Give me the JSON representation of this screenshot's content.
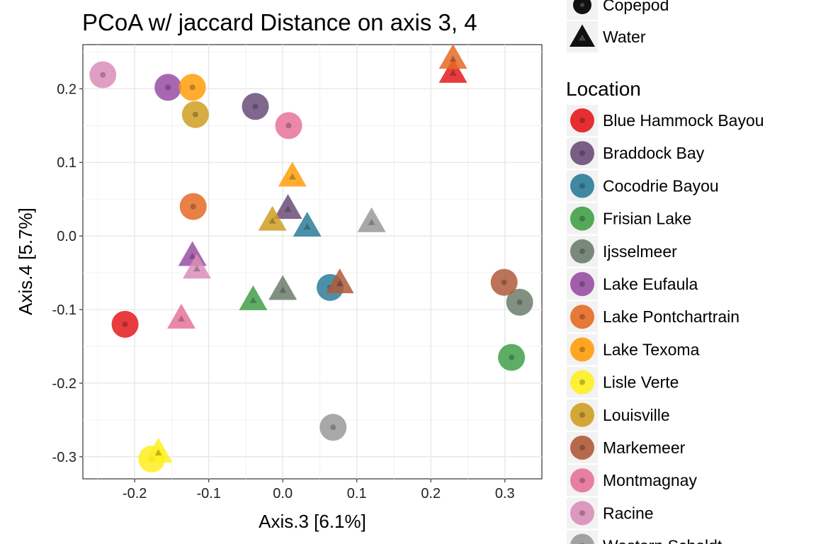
{
  "chart_data": {
    "type": "scatter",
    "title": "PCoA w/ jaccard Distance on axis 3, 4",
    "xlabel": "Axis.3   [6.1%]",
    "ylabel": "Axis.4   [5.7%]",
    "xlim": [
      -0.27,
      0.35
    ],
    "ylim": [
      -0.33,
      0.26
    ],
    "xticks": [
      {
        "value": -0.2,
        "label": "-0.2"
      },
      {
        "value": -0.1,
        "label": "-0.1"
      },
      {
        "value": 0.0,
        "label": "0.0"
      },
      {
        "value": 0.1,
        "label": "0.1"
      },
      {
        "value": 0.2,
        "label": "0.2"
      },
      {
        "value": 0.3,
        "label": "0.3"
      }
    ],
    "yticks": [
      {
        "value": 0.2,
        "label": "0.2"
      },
      {
        "value": 0.1,
        "label": "0.1"
      },
      {
        "value": 0.0,
        "label": "0.0"
      },
      {
        "value": -0.1,
        "label": "-0.1"
      },
      {
        "value": -0.2,
        "label": "-0.2"
      },
      {
        "value": -0.3,
        "label": "-0.3"
      }
    ],
    "grid": true,
    "shape_legend": {
      "entries": [
        {
          "label": "Copepod",
          "shape": "circle"
        },
        {
          "label": "Water",
          "shape": "triangle"
        }
      ]
    },
    "color_legend": {
      "title": "Location",
      "entries": [
        {
          "label": "Blue Hammock Bayou",
          "color": "#e41a1c"
        },
        {
          "label": "Braddock Bay",
          "color": "#6a4c7a"
        },
        {
          "label": "Cocodrie Bayou",
          "color": "#2b7c98"
        },
        {
          "label": "Frisian Lake",
          "color": "#41a049"
        },
        {
          "label": "Ijsselmeer",
          "color": "#6b7d6b"
        },
        {
          "label": "Lake Eufaula",
          "color": "#984ea3"
        },
        {
          "label": "Lake Pontchartrain",
          "color": "#e56a24"
        },
        {
          "label": "Lake Texoma",
          "color": "#ff9d0a"
        },
        {
          "label": "Lisle Verte",
          "color": "#ffee22"
        },
        {
          "label": "Louisville",
          "color": "#cf9f22"
        },
        {
          "label": "Markemeer",
          "color": "#b05a3a"
        },
        {
          "label": "Montmagnay",
          "color": "#e7729a"
        },
        {
          "label": "Racine",
          "color": "#d98eb8"
        },
        {
          "label": "Western Scheldt",
          "color": "#999999"
        }
      ]
    },
    "points": [
      {
        "x": 0.23,
        "y": 0.221,
        "shape": "triangle",
        "location": "Blue Hammock Bayou"
      },
      {
        "x": -0.213,
        "y": -0.12,
        "shape": "circle",
        "location": "Blue Hammock Bayou"
      },
      {
        "x": -0.037,
        "y": 0.176,
        "shape": "circle",
        "location": "Braddock Bay"
      },
      {
        "x": 0.007,
        "y": 0.036,
        "shape": "triangle",
        "location": "Braddock Bay"
      },
      {
        "x": 0.033,
        "y": 0.012,
        "shape": "triangle",
        "location": "Cocodrie Bayou"
      },
      {
        "x": 0.064,
        "y": -0.07,
        "shape": "circle",
        "location": "Cocodrie Bayou"
      },
      {
        "x": 0.309,
        "y": -0.165,
        "shape": "circle",
        "location": "Frisian Lake"
      },
      {
        "x": -0.04,
        "y": -0.088,
        "shape": "triangle",
        "location": "Frisian Lake"
      },
      {
        "x": 0.32,
        "y": -0.09,
        "shape": "circle",
        "location": "Ijsselmeer"
      },
      {
        "x": 0.0,
        "y": -0.074,
        "shape": "triangle",
        "location": "Ijsselmeer"
      },
      {
        "x": -0.155,
        "y": 0.202,
        "shape": "circle",
        "location": "Lake Eufaula"
      },
      {
        "x": -0.122,
        "y": -0.028,
        "shape": "triangle",
        "location": "Lake Eufaula"
      },
      {
        "x": 0.23,
        "y": 0.24,
        "shape": "triangle",
        "location": "Lake Pontchartrain"
      },
      {
        "x": -0.121,
        "y": 0.04,
        "shape": "circle",
        "location": "Lake Pontchartrain"
      },
      {
        "x": -0.122,
        "y": 0.202,
        "shape": "circle",
        "location": "Lake Texoma"
      },
      {
        "x": 0.013,
        "y": 0.08,
        "shape": "triangle",
        "location": "Lake Texoma"
      },
      {
        "x": -0.177,
        "y": -0.303,
        "shape": "circle",
        "location": "Lisle Verte"
      },
      {
        "x": -0.168,
        "y": -0.295,
        "shape": "triangle",
        "location": "Lisle Verte"
      },
      {
        "x": -0.118,
        "y": 0.165,
        "shape": "circle",
        "location": "Louisville"
      },
      {
        "x": -0.014,
        "y": 0.02,
        "shape": "triangle",
        "location": "Louisville"
      },
      {
        "x": 0.299,
        "y": -0.063,
        "shape": "circle",
        "location": "Markemeer"
      },
      {
        "x": 0.077,
        "y": -0.065,
        "shape": "triangle",
        "location": "Markemeer"
      },
      {
        "x": -0.137,
        "y": -0.113,
        "shape": "triangle",
        "location": "Montmagnay"
      },
      {
        "x": 0.008,
        "y": 0.15,
        "shape": "circle",
        "location": "Montmagnay"
      },
      {
        "x": -0.243,
        "y": 0.219,
        "shape": "circle",
        "location": "Racine"
      },
      {
        "x": -0.116,
        "y": -0.045,
        "shape": "triangle",
        "location": "Racine"
      },
      {
        "x": 0.068,
        "y": -0.26,
        "shape": "circle",
        "location": "Western Scheldt"
      },
      {
        "x": 0.12,
        "y": 0.018,
        "shape": "triangle",
        "location": "Western Scheldt"
      }
    ]
  }
}
